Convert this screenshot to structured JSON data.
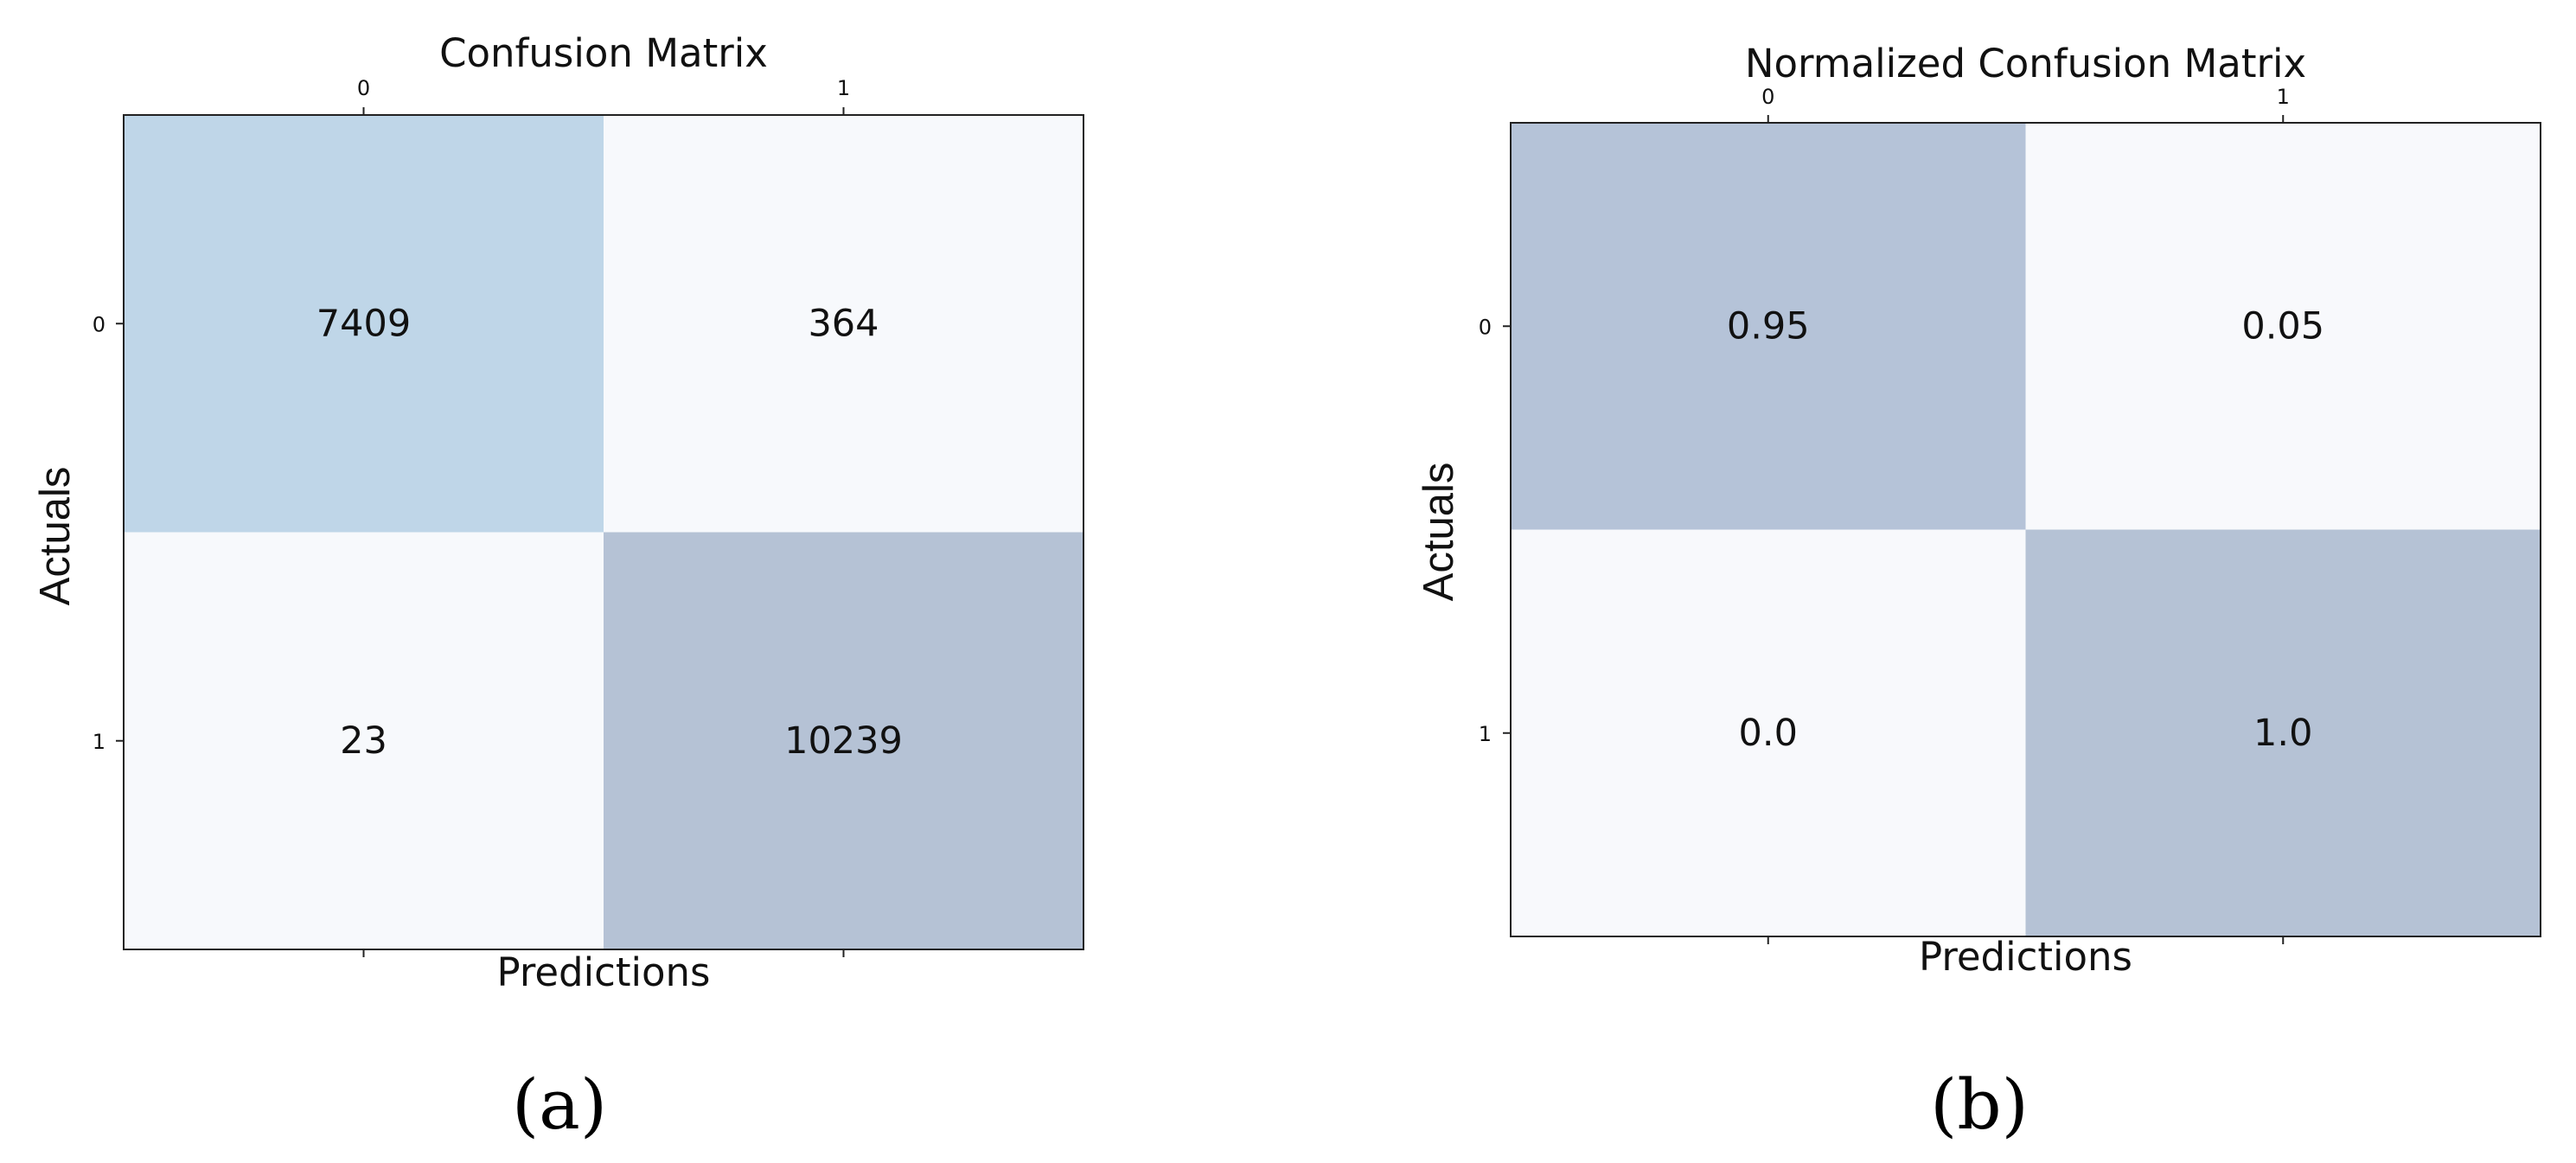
{
  "chart_data": [
    {
      "type": "heatmap",
      "title": "Confusion Matrix",
      "xlabel": "Predictions",
      "ylabel": "Actuals",
      "x_categories": [
        "0",
        "1"
      ],
      "y_categories": [
        "0",
        "1"
      ],
      "values": [
        [
          7409,
          364
        ],
        [
          23,
          10239
        ]
      ],
      "labels": [
        [
          "7409",
          "364"
        ],
        [
          "23",
          "10239"
        ]
      ],
      "cell_colors": [
        [
          "#bfd6e8",
          "#f7f9fc"
        ],
        [
          "#f7f9fc",
          "#b5c2d5"
        ]
      ],
      "caption": "(a)"
    },
    {
      "type": "heatmap",
      "title": "Normalized Confusion Matrix",
      "xlabel": "Predictions",
      "ylabel": "Actuals",
      "x_categories": [
        "0",
        "1"
      ],
      "y_categories": [
        "0",
        "1"
      ],
      "values": [
        [
          0.95,
          0.05
        ],
        [
          0.0,
          1.0
        ]
      ],
      "labels": [
        [
          "0.95",
          "0.05"
        ],
        [
          "0.0",
          "1.0"
        ]
      ],
      "cell_colors": [
        [
          "#b5c3d8",
          "#f8f9fc"
        ],
        [
          "#f8f9fc",
          "#b5c2d5"
        ]
      ],
      "caption": "(b)"
    }
  ]
}
